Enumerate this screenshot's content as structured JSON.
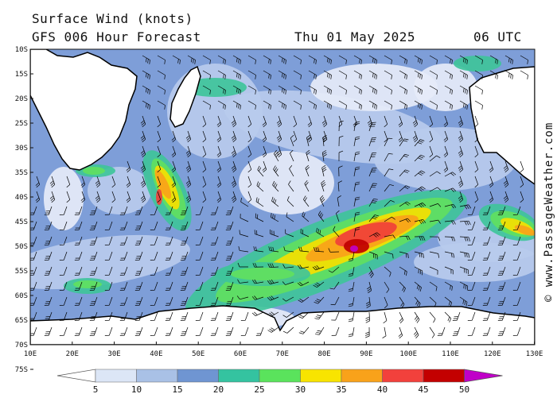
{
  "header": {
    "title": "Surface Wind (knots)",
    "subtitle": "GFS 006 Hour Forecast",
    "date": "Thu 01 May 2025",
    "time": "06 UTC"
  },
  "credit": "© www.PassageWeather.com",
  "map": {
    "lat_labels": [
      "10S",
      "15S",
      "20S",
      "25S",
      "30S",
      "35S",
      "40S",
      "45S",
      "50S",
      "55S",
      "60S",
      "65S",
      "70S",
      "75S"
    ],
    "lon_labels": [
      "10E",
      "20E",
      "30E",
      "40E",
      "50E",
      "60E",
      "70E",
      "80E",
      "90E",
      "100E",
      "110E",
      "120E",
      "130E"
    ]
  },
  "colorbar": {
    "labels": [
      "5",
      "10",
      "15",
      "20",
      "25",
      "30",
      "35",
      "40",
      "45",
      "50"
    ],
    "colors": [
      "#ffffff",
      "#dce6f6",
      "#a9c1e6",
      "#6f95d2",
      "#34c3a0",
      "#5ae35c",
      "#f8e400",
      "#f9a21a",
      "#f2413c",
      "#c30000",
      "#c000c8"
    ]
  },
  "wind_palette": {
    "calm": "#e6ecf8",
    "light": "#b8cbed",
    "moderate": "#7e9ed8",
    "fresh": "#3fc49a",
    "strong": "#61e060",
    "gale": "#f5e000",
    "severe": "#f9a21a",
    "storm": "#f0403a",
    "violent": "#c00000",
    "hurricane": "#c000c8",
    "land": "#ffffff"
  }
}
